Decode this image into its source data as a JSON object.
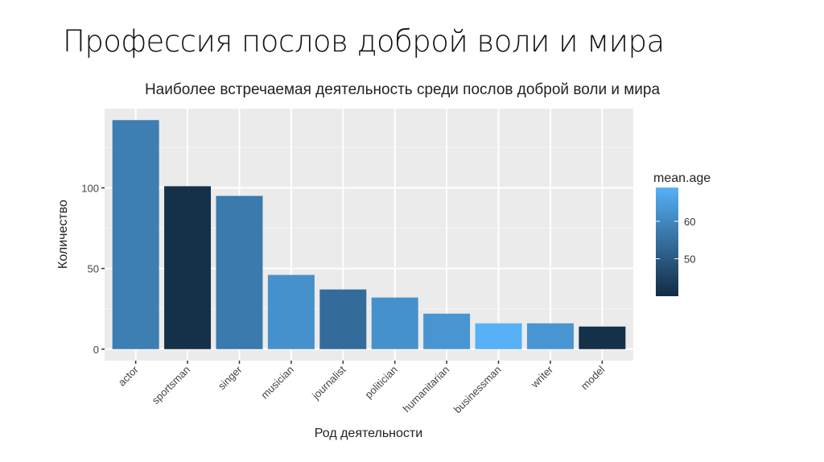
{
  "slide": {
    "title": "Профессия послов доброй воли и мира"
  },
  "chart_data": {
    "type": "bar",
    "title": "Наиболее встречаемая деятельность среди послов доброй воли и мира",
    "xlabel": "Род деятельности",
    "ylabel": "Количество",
    "categories": [
      "actor",
      "sportsman",
      "singer",
      "musician",
      "journalist",
      "politician",
      "humanitarian",
      "businessman",
      "writer",
      "model"
    ],
    "values": [
      142,
      101,
      95,
      46,
      37,
      32,
      22,
      16,
      16,
      14
    ],
    "fill_variable": "mean.age",
    "mean_age": [
      58,
      41,
      57,
      62,
      54,
      62,
      63,
      69,
      63,
      41
    ],
    "ylim": [
      -7.1,
      149.1
    ],
    "yticks": [
      0,
      50,
      100
    ],
    "grid": true,
    "legend": {
      "title": "mean.age",
      "ticks": [
        50,
        60
      ],
      "range": [
        40,
        69
      ],
      "placement": "right",
      "low_color": "#132B43",
      "high_color": "#56B1F7"
    },
    "panel_background": "#EBEBEB"
  }
}
